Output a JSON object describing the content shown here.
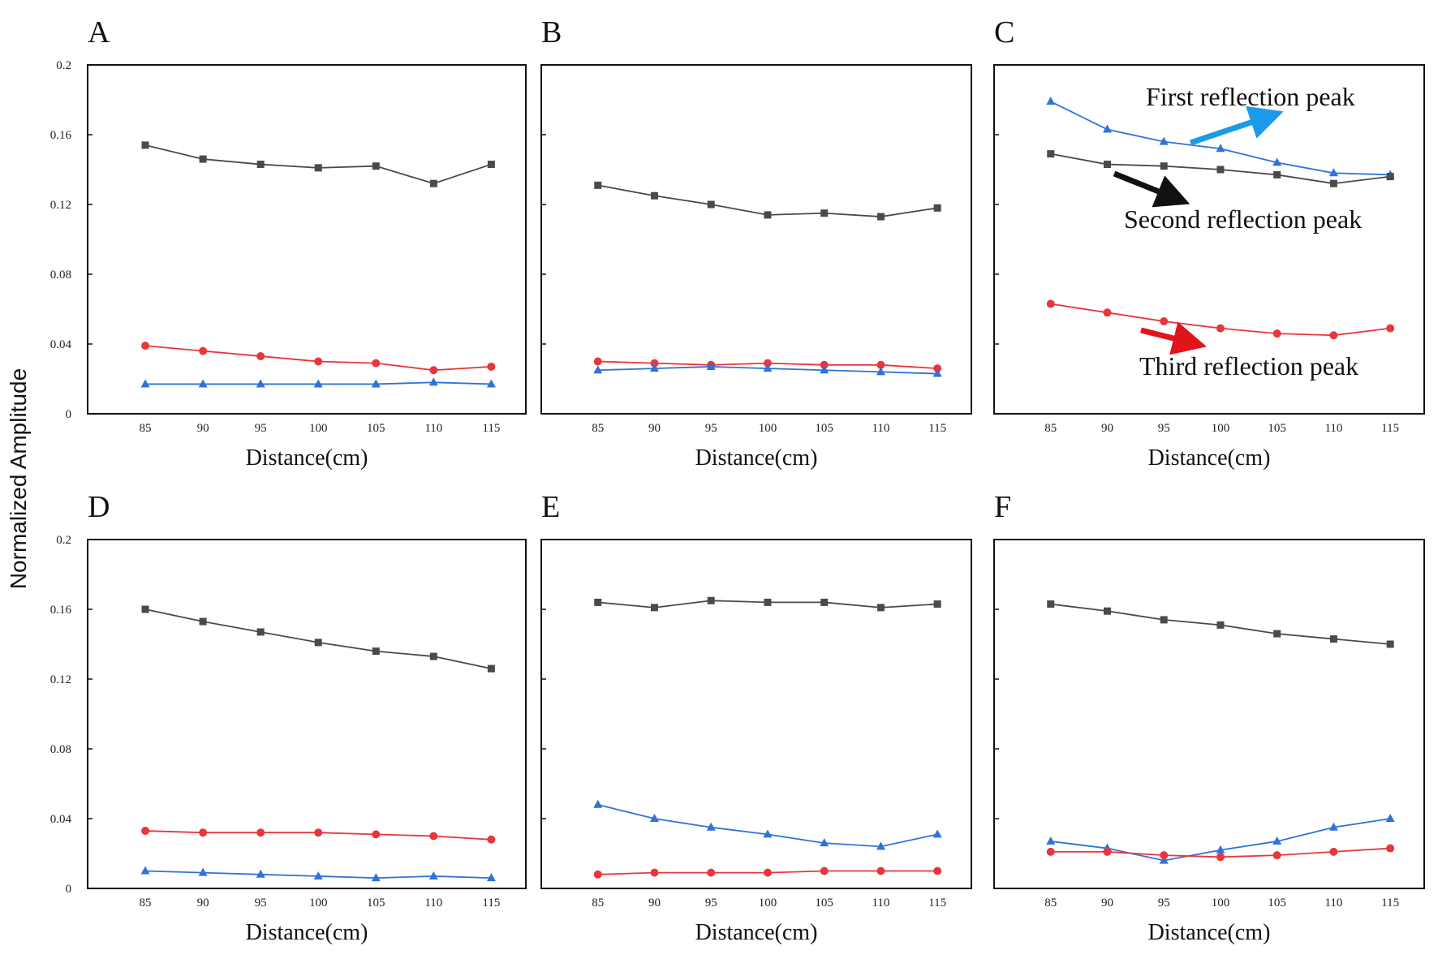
{
  "figure": {
    "ylabel": "Normalized Amplitude",
    "colors": {
      "first": "#2e73d8",
      "second": "#4a4a4a",
      "third": "#e8363c",
      "first_arrow": "#1a9ae8",
      "second_arrow": "#111111",
      "third_arrow": "#e0141c"
    }
  },
  "chart_data": [
    {
      "type": "line",
      "panel": "A",
      "xlabel": "Distance(cm)",
      "ylabel": "Normalized Amplitude",
      "x": [
        85,
        90,
        95,
        100,
        105,
        110,
        115
      ],
      "ylim": [
        0,
        0.2
      ],
      "yticks": [
        "0",
        "0.04",
        "0.08",
        "0.12",
        "0.16",
        "0.2"
      ],
      "series": [
        {
          "name": "Second reflection peak",
          "values": [
            0.154,
            0.146,
            0.143,
            0.141,
            0.142,
            0.132,
            0.143
          ]
        },
        {
          "name": "Third reflection peak",
          "values": [
            0.039,
            0.036,
            0.033,
            0.03,
            0.029,
            0.025,
            0.027
          ]
        },
        {
          "name": "First reflection peak",
          "values": [
            0.017,
            0.017,
            0.017,
            0.017,
            0.017,
            0.018,
            0.017
          ]
        }
      ]
    },
    {
      "type": "line",
      "panel": "B",
      "xlabel": "Distance(cm)",
      "ylabel": "Normalized Amplitude",
      "x": [
        85,
        90,
        95,
        100,
        105,
        110,
        115
      ],
      "ylim": [
        0,
        0.2
      ],
      "series": [
        {
          "name": "Second reflection peak",
          "values": [
            0.131,
            0.125,
            0.12,
            0.114,
            0.115,
            0.113,
            0.118
          ]
        },
        {
          "name": "Third reflection peak",
          "values": [
            0.03,
            0.029,
            0.028,
            0.029,
            0.028,
            0.028,
            0.026
          ]
        },
        {
          "name": "First reflection peak",
          "values": [
            0.025,
            0.026,
            0.027,
            0.026,
            0.025,
            0.024,
            0.023
          ]
        }
      ]
    },
    {
      "type": "line",
      "panel": "C",
      "xlabel": "Distance(cm)",
      "ylabel": "Normalized Amplitude",
      "x": [
        85,
        90,
        95,
        100,
        105,
        110,
        115
      ],
      "ylim": [
        0,
        0.2
      ],
      "series": [
        {
          "name": "First reflection peak",
          "values": [
            0.179,
            0.163,
            0.156,
            0.152,
            0.144,
            0.138,
            0.137
          ]
        },
        {
          "name": "Second reflection peak",
          "values": [
            0.149,
            0.143,
            0.142,
            0.14,
            0.137,
            0.132,
            0.136
          ]
        },
        {
          "name": "Third reflection peak",
          "values": [
            0.063,
            0.058,
            0.053,
            0.049,
            0.046,
            0.045,
            0.049
          ]
        }
      ],
      "annotations": [
        "First reflection peak",
        "Second reflection peak",
        "Third reflection peak"
      ]
    },
    {
      "type": "line",
      "panel": "D",
      "xlabel": "Distance(cm)",
      "ylabel": "Normalized Amplitude",
      "x": [
        85,
        90,
        95,
        100,
        105,
        110,
        115
      ],
      "ylim": [
        0,
        0.2
      ],
      "yticks": [
        "0",
        "0.04",
        "0.08",
        "0.12",
        "0.16",
        "0.2"
      ],
      "series": [
        {
          "name": "Second reflection peak",
          "values": [
            0.16,
            0.153,
            0.147,
            0.141,
            0.136,
            0.133,
            0.126
          ]
        },
        {
          "name": "Third reflection peak",
          "values": [
            0.033,
            0.032,
            0.032,
            0.032,
            0.031,
            0.03,
            0.028
          ]
        },
        {
          "name": "First reflection peak",
          "values": [
            0.01,
            0.009,
            0.008,
            0.007,
            0.006,
            0.007,
            0.006
          ]
        }
      ]
    },
    {
      "type": "line",
      "panel": "E",
      "xlabel": "Distance(cm)",
      "ylabel": "Normalized Amplitude",
      "x": [
        85,
        90,
        95,
        100,
        105,
        110,
        115
      ],
      "ylim": [
        0,
        0.2
      ],
      "series": [
        {
          "name": "Second reflection peak",
          "values": [
            0.164,
            0.161,
            0.165,
            0.164,
            0.164,
            0.161,
            0.163
          ]
        },
        {
          "name": "First reflection peak",
          "values": [
            0.048,
            0.04,
            0.035,
            0.031,
            0.026,
            0.024,
            0.031
          ]
        },
        {
          "name": "Third reflection peak",
          "values": [
            0.008,
            0.009,
            0.009,
            0.009,
            0.01,
            0.01,
            0.01
          ]
        }
      ]
    },
    {
      "type": "line",
      "panel": "F",
      "xlabel": "Distance(cm)",
      "ylabel": "Normalized Amplitude",
      "x": [
        85,
        90,
        95,
        100,
        105,
        110,
        115
      ],
      "ylim": [
        0,
        0.2
      ],
      "series": [
        {
          "name": "Second reflection peak",
          "values": [
            0.163,
            0.159,
            0.154,
            0.151,
            0.146,
            0.143,
            0.14
          ]
        },
        {
          "name": "First reflection peak",
          "values": [
            0.027,
            0.023,
            0.016,
            0.022,
            0.027,
            0.035,
            0.04
          ]
        },
        {
          "name": "Third reflection peak",
          "values": [
            0.021,
            0.021,
            0.019,
            0.018,
            0.019,
            0.021,
            0.023
          ]
        }
      ]
    }
  ]
}
